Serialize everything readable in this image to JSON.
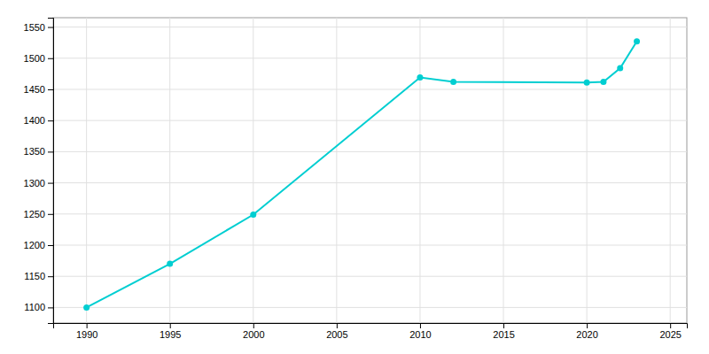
{
  "chart_data": {
    "type": "line",
    "x": [
      1990,
      1995,
      2000,
      2010,
      2012,
      2020,
      2021,
      2022,
      2023
    ],
    "values": [
      1100,
      1170,
      1249,
      1469,
      1462,
      1461,
      1462,
      1484,
      1527
    ],
    "color": "#00CED1",
    "xlim": [
      1988,
      2026
    ],
    "ylim": [
      1075,
      1565
    ],
    "xticks": [
      1990,
      1995,
      2000,
      2005,
      2010,
      2015,
      2020,
      2025
    ],
    "yticks": [
      1100,
      1150,
      1200,
      1250,
      1300,
      1350,
      1400,
      1450,
      1500,
      1550
    ],
    "grid": true,
    "marker": "circle"
  }
}
